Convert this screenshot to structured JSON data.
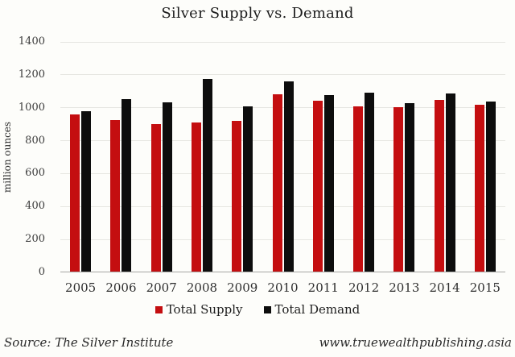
{
  "title": "Silver Supply vs. Demand",
  "colors": {
    "supply": "#c40e10",
    "demand": "#0d0d0d",
    "grid": "#e6e6e1",
    "axis": "#a6a6a3",
    "background": "#fdfdfa"
  },
  "legend": {
    "supply_label": "Total Supply",
    "demand_label": "Total Demand"
  },
  "footer": {
    "source": "Source: The Silver Institute",
    "website": "www.truewealthpublishing.asia"
  },
  "chart_data": {
    "type": "bar",
    "title": "Silver Supply vs. Demand",
    "categories": [
      "2005",
      "2006",
      "2007",
      "2008",
      "2009",
      "2010",
      "2011",
      "2012",
      "2013",
      "2014",
      "2015"
    ],
    "series": [
      {
        "name": "Total Supply",
        "color": "#c40e10",
        "values": [
          955,
          920,
          895,
          905,
          915,
          1075,
          1040,
          1005,
          1000,
          1045,
          1015
        ]
      },
      {
        "name": "Total Demand",
        "color": "#0d0d0d",
        "values": [
          975,
          1050,
          1030,
          1170,
          1005,
          1155,
          1070,
          1085,
          1025,
          1080,
          1035
        ]
      }
    ],
    "xlabel": "",
    "ylabel": "million ounces",
    "ylim": [
      0,
      1400
    ],
    "ytick_step": 200,
    "grid": true,
    "legend_position": "bottom"
  }
}
